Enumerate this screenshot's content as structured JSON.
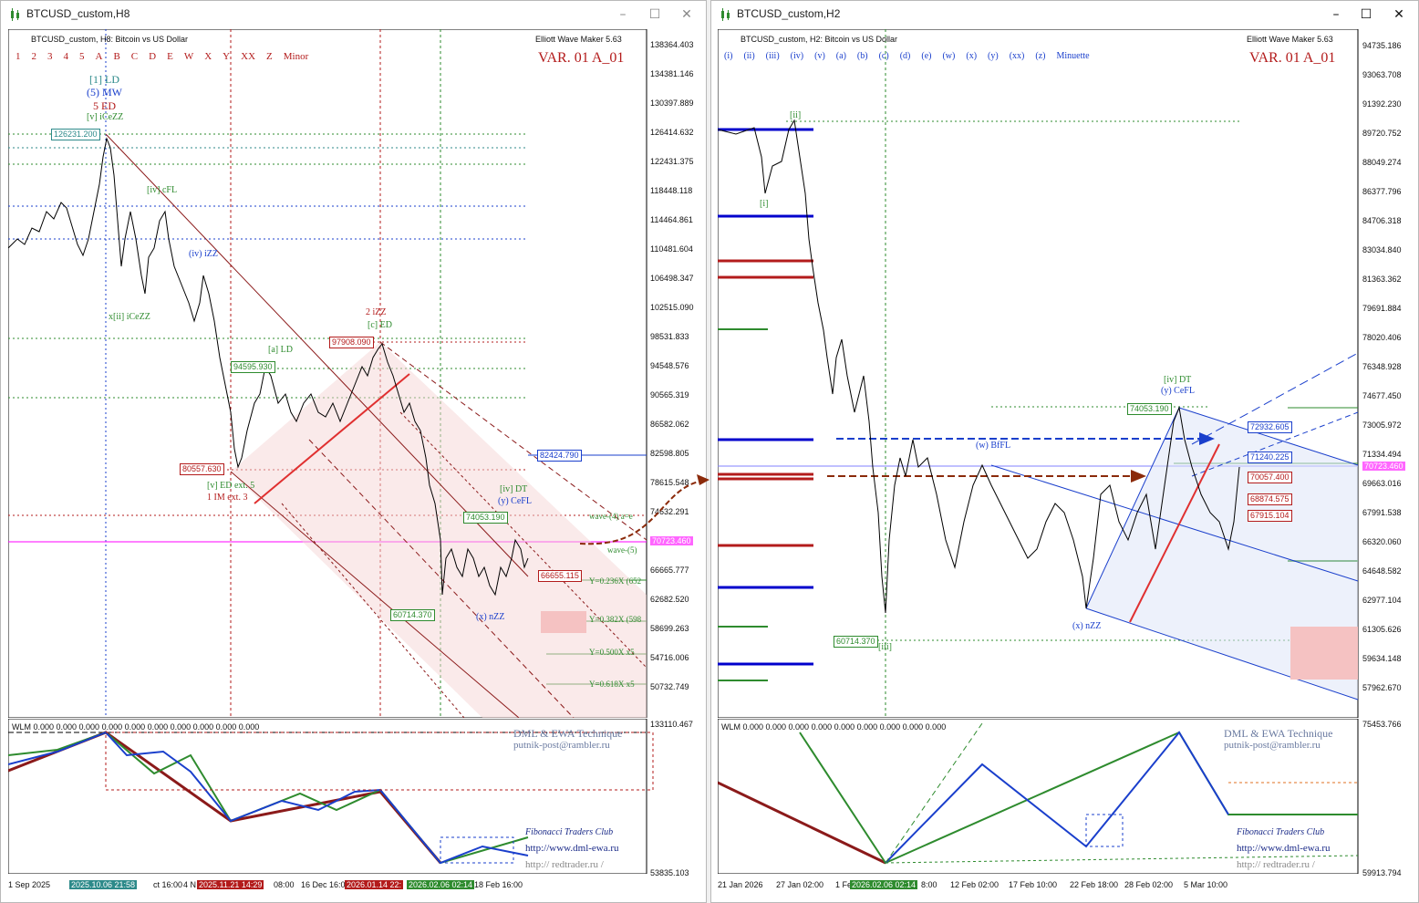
{
  "left": {
    "title": "BTCUSD_custom,H8",
    "header": "BTCUSD_custom, H8:  Bitcoin vs US Dollar",
    "ewm": "Elliott Wave Maker 5.63",
    "var_label": "VAR. 01 A_01",
    "wave_degrees": [
      "1",
      "2",
      "3",
      "4",
      "5",
      "A",
      "B",
      "C",
      "D",
      "E",
      "W",
      "X",
      "Y",
      "XX",
      "Z",
      "Minor"
    ],
    "price_axis": [
      "138364.403",
      "134381.146",
      "130397.889",
      "126414.632",
      "122431.375",
      "118448.118",
      "114464.861",
      "110481.604",
      "106498.347",
      "102515.090",
      "98531.833",
      "94548.576",
      "90565.319",
      "86582.062",
      "82598.805",
      "78615.548",
      "74632.291",
      "70723.460",
      "66665.777",
      "62682.520",
      "58699.263",
      "54716.006",
      "50732.749"
    ],
    "sub_axis": [
      "133110.467",
      "53835.103"
    ],
    "sub_header": "WLM 0.000 0.000 0.000 0.000 0.000 0.000 0.000 0.000 0.000 0.000",
    "dates": [
      "1 Sep 2025",
      "2025.10.06 21:58",
      "ct 16:00",
      "4 N",
      "2025.11.21 14:29",
      "08:00",
      "16 Dec 16:00",
      "2026.01.14 22:",
      "2026.02.06 02:14",
      "18 Feb 16:00"
    ],
    "price_tags": [
      {
        "text": "126231.200",
        "color": "#2d8a8a"
      },
      {
        "text": "97908.090",
        "color": "#b31b1b"
      },
      {
        "text": "94595.930",
        "color": "#2e8b2e"
      },
      {
        "text": "80557.630",
        "color": "#b31b1b"
      },
      {
        "text": "82424.790",
        "color": "#1a3fcc"
      },
      {
        "text": "74053.190",
        "color": "#2e8b2e"
      },
      {
        "text": "60714.370",
        "color": "#2e8b2e"
      },
      {
        "text": "66655.115",
        "color": "#b31b1b"
      },
      {
        "text": "70723.460",
        "color": "#ff00ff"
      }
    ],
    "wave_labels": [
      {
        "text": "[1] LD",
        "color": "#2d8a8a"
      },
      {
        "text": "(5) MW",
        "color": "#1a3fcc"
      },
      {
        "text": "5 ED",
        "color": "#b31b1b"
      },
      {
        "text": "[v] iCeZZ",
        "color": "#2e8b2e"
      },
      {
        "text": "2 iZZ",
        "color": "#b31b1b"
      },
      {
        "text": "[c] ED",
        "color": "#2e8b2e"
      },
      {
        "text": "[a] LD",
        "color": "#2e8b2e"
      },
      {
        "text": "[iv] cFL",
        "color": "#2e8b2e"
      },
      {
        "text": "(iv) iZZ",
        "color": "#1a3fcc"
      },
      {
        "text": "[v] ED ext. 5",
        "color": "#2e8b2e"
      },
      {
        "text": "1 IM ext. 3",
        "color": "#b31b1b"
      },
      {
        "text": "[iv] DT",
        "color": "#2e8b2e"
      },
      {
        "text": "(y) CeFL",
        "color": "#1a3fcc"
      },
      {
        "text": "(x) nZZ",
        "color": "#1a3fcc"
      },
      {
        "text": "x[ii] iCeZZ",
        "color": "#2e8b2e"
      },
      {
        "text": "wave-(4) a=e",
        "color": "#2e8b2e"
      },
      {
        "text": "wave-(5)",
        "color": "#2e8b2e"
      },
      {
        "text": "Y=0.236X (652",
        "color": "#2e8b2e"
      },
      {
        "text": "Y=0.382X (598",
        "color": "#2e8b2e"
      },
      {
        "text": "Y=0.500X x5",
        "color": "#2e8b2e"
      },
      {
        "text": "Y=0.618X x5",
        "color": "#2e8b2e"
      }
    ],
    "footer": {
      "brand": "DML & EWA Technique",
      "email": "putnik-post@rambler.ru",
      "club": "Fibonacci    Traders    Club",
      "url1": "http://www.dml-ewa.ru",
      "url2": "http://  redtrader.ru  /"
    },
    "current_price": "70723.460"
  },
  "right": {
    "title": "BTCUSD_custom,H2",
    "header": "BTCUSD_custom, H2:  Bitcoin vs US Dollar",
    "ewm": "Elliott Wave Maker 5.63",
    "var_label": "VAR. 01 A_01",
    "wave_degrees": [
      "(i)",
      "(ii)",
      "(iii)",
      "(iv)",
      "(v)",
      "(a)",
      "(b)",
      "(c)",
      "(d)",
      "(e)",
      "(w)",
      "(x)",
      "(y)",
      "(xx)",
      "(z)",
      "Minuette"
    ],
    "price_axis": [
      "94735.186",
      "93063.708",
      "91392.230",
      "89720.752",
      "88049.274",
      "86377.796",
      "84706.318",
      "83034.840",
      "81363.362",
      "79691.884",
      "78020.406",
      "76348.928",
      "74677.450",
      "73005.972",
      "71334.494",
      "70723.460",
      "69663.016",
      "67991.538",
      "66320.060",
      "64648.582",
      "62977.104",
      "61305.626",
      "59634.148",
      "57962.670"
    ],
    "sub_axis": [
      "75453.766",
      "59913.794"
    ],
    "sub_header": "WLM 0.000 0.000 0.000 0.000 0.000 0.000 0.000 0.000 0.000",
    "dates": [
      "21 Jan 2026",
      "27 Jan 02:00",
      "1 Fe",
      "2026.02.06 02:14",
      "8:00",
      "12 Feb 02:00",
      "17 Feb 10:00",
      "22 Feb 18:00",
      "28 Feb 02:00",
      "5 Mar 10:00"
    ],
    "price_tags": [
      {
        "text": "72932.605",
        "color": "#1a3fcc"
      },
      {
        "text": "71240.225",
        "color": "#1a3fcc"
      },
      {
        "text": "70057.400",
        "color": "#b31b1b"
      },
      {
        "text": "68874.575",
        "color": "#b31b1b"
      },
      {
        "text": "67915.104",
        "color": "#b31b1b"
      },
      {
        "text": "74053.190",
        "color": "#2e8b2e"
      },
      {
        "text": "60714.370",
        "color": "#2e8b2e"
      }
    ],
    "wave_labels": [
      {
        "text": "[ii]",
        "color": "#2e8b2e"
      },
      {
        "text": "[i]",
        "color": "#2e8b2e"
      },
      {
        "text": "[iii]",
        "color": "#2e8b2e"
      },
      {
        "text": "[iv] DT",
        "color": "#2e8b2e"
      },
      {
        "text": "(y) CeFL",
        "color": "#1a3fcc"
      },
      {
        "text": "(w) BfFL",
        "color": "#1a3fcc"
      },
      {
        "text": "(x) nZZ",
        "color": "#1a3fcc"
      }
    ],
    "footer": {
      "brand": "DML & EWA Technique",
      "email": "putnik-post@rambler.ru",
      "club": "Fibonacci    Traders    Club",
      "url1": "http://www.dml-ewa.ru",
      "url2": "http://  redtrader.ru  /"
    },
    "current_price": "70723.460"
  },
  "colors": {
    "red": "#b31b1b",
    "green": "#2e8b2e",
    "blue": "#1a3fcc",
    "magenta": "#ff00ff",
    "teal": "#2d8a8a",
    "brown": "#8b2a0a"
  }
}
